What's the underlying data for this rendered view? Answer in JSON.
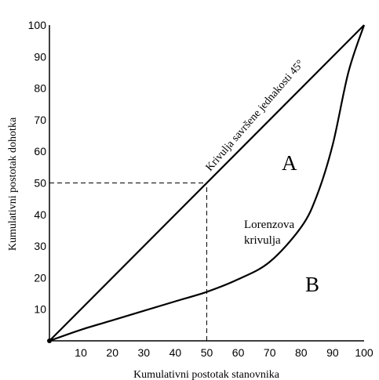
{
  "chart_data": {
    "type": "line",
    "xlabel": "Kumulativni postotak stanovnika",
    "ylabel": "Kumulativni postotak dohotka",
    "xlim": [
      0,
      100
    ],
    "ylim": [
      0,
      100
    ],
    "x_ticks": [
      10,
      20,
      30,
      40,
      50,
      60,
      70,
      80,
      90,
      100
    ],
    "y_ticks": [
      10,
      20,
      30,
      40,
      50,
      60,
      70,
      80,
      90,
      100
    ],
    "grid": false,
    "series": [
      {
        "label": "Krivulja savršene jednakosti 45°",
        "x": [
          0,
          100
        ],
        "y": [
          0,
          100
        ]
      },
      {
        "label": "Lorenzova krivulja",
        "x": [
          0,
          10,
          20,
          30,
          40,
          50,
          60,
          70,
          80,
          85,
          90,
          95,
          100
        ],
        "y": [
          0,
          3.5,
          6.5,
          9.5,
          12.5,
          15.5,
          19.5,
          25,
          36,
          46,
          62,
          85,
          100
        ]
      }
    ],
    "reference_lines": [
      {
        "from": [
          0,
          50
        ],
        "to": [
          50,
          50
        ],
        "style": "dashed"
      },
      {
        "from": [
          50,
          0
        ],
        "to": [
          50,
          50
        ],
        "style": "dashed"
      }
    ],
    "annotations": {
      "region_a": "A",
      "region_b": "B",
      "lorenz_line1": "Lorenzova",
      "lorenz_line2": "krivulja"
    },
    "origin_point": [
      0,
      0
    ]
  }
}
